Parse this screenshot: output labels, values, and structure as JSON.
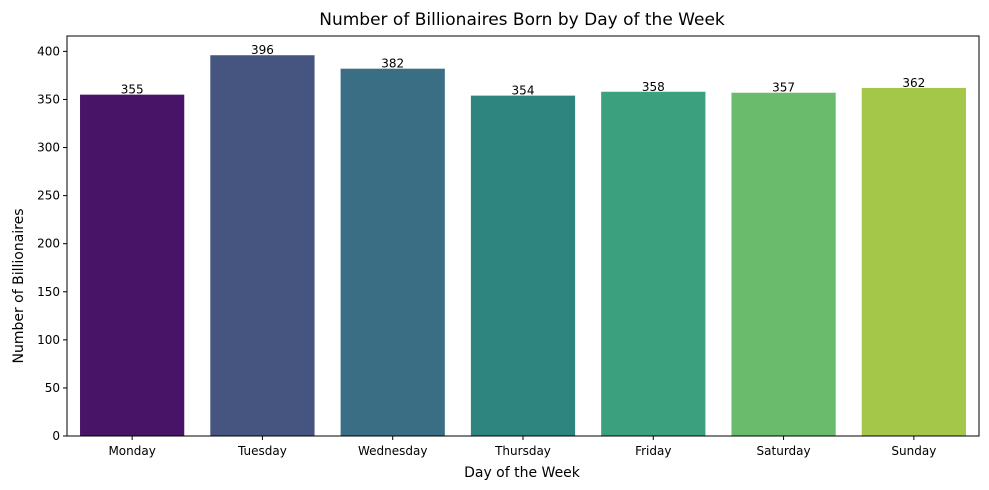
{
  "chart_data": {
    "type": "bar",
    "title": "Number of Billionaires Born by Day of the Week",
    "xlabel": "Day of the Week",
    "ylabel": "Number of Billionaires",
    "categories": [
      "Monday",
      "Tuesday",
      "Wednesday",
      "Thursday",
      "Friday",
      "Saturday",
      "Sunday"
    ],
    "values": [
      355,
      396,
      382,
      354,
      358,
      357,
      362
    ],
    "colors": [
      "#481467",
      "#45557f",
      "#3a6e84",
      "#2e8580",
      "#3ba07d",
      "#6abb6c",
      "#a4c74a"
    ],
    "ylim": [
      0,
      416
    ],
    "yticks": [
      0,
      50,
      100,
      150,
      200,
      250,
      300,
      350,
      400
    ],
    "grid": false,
    "legend": false
  }
}
